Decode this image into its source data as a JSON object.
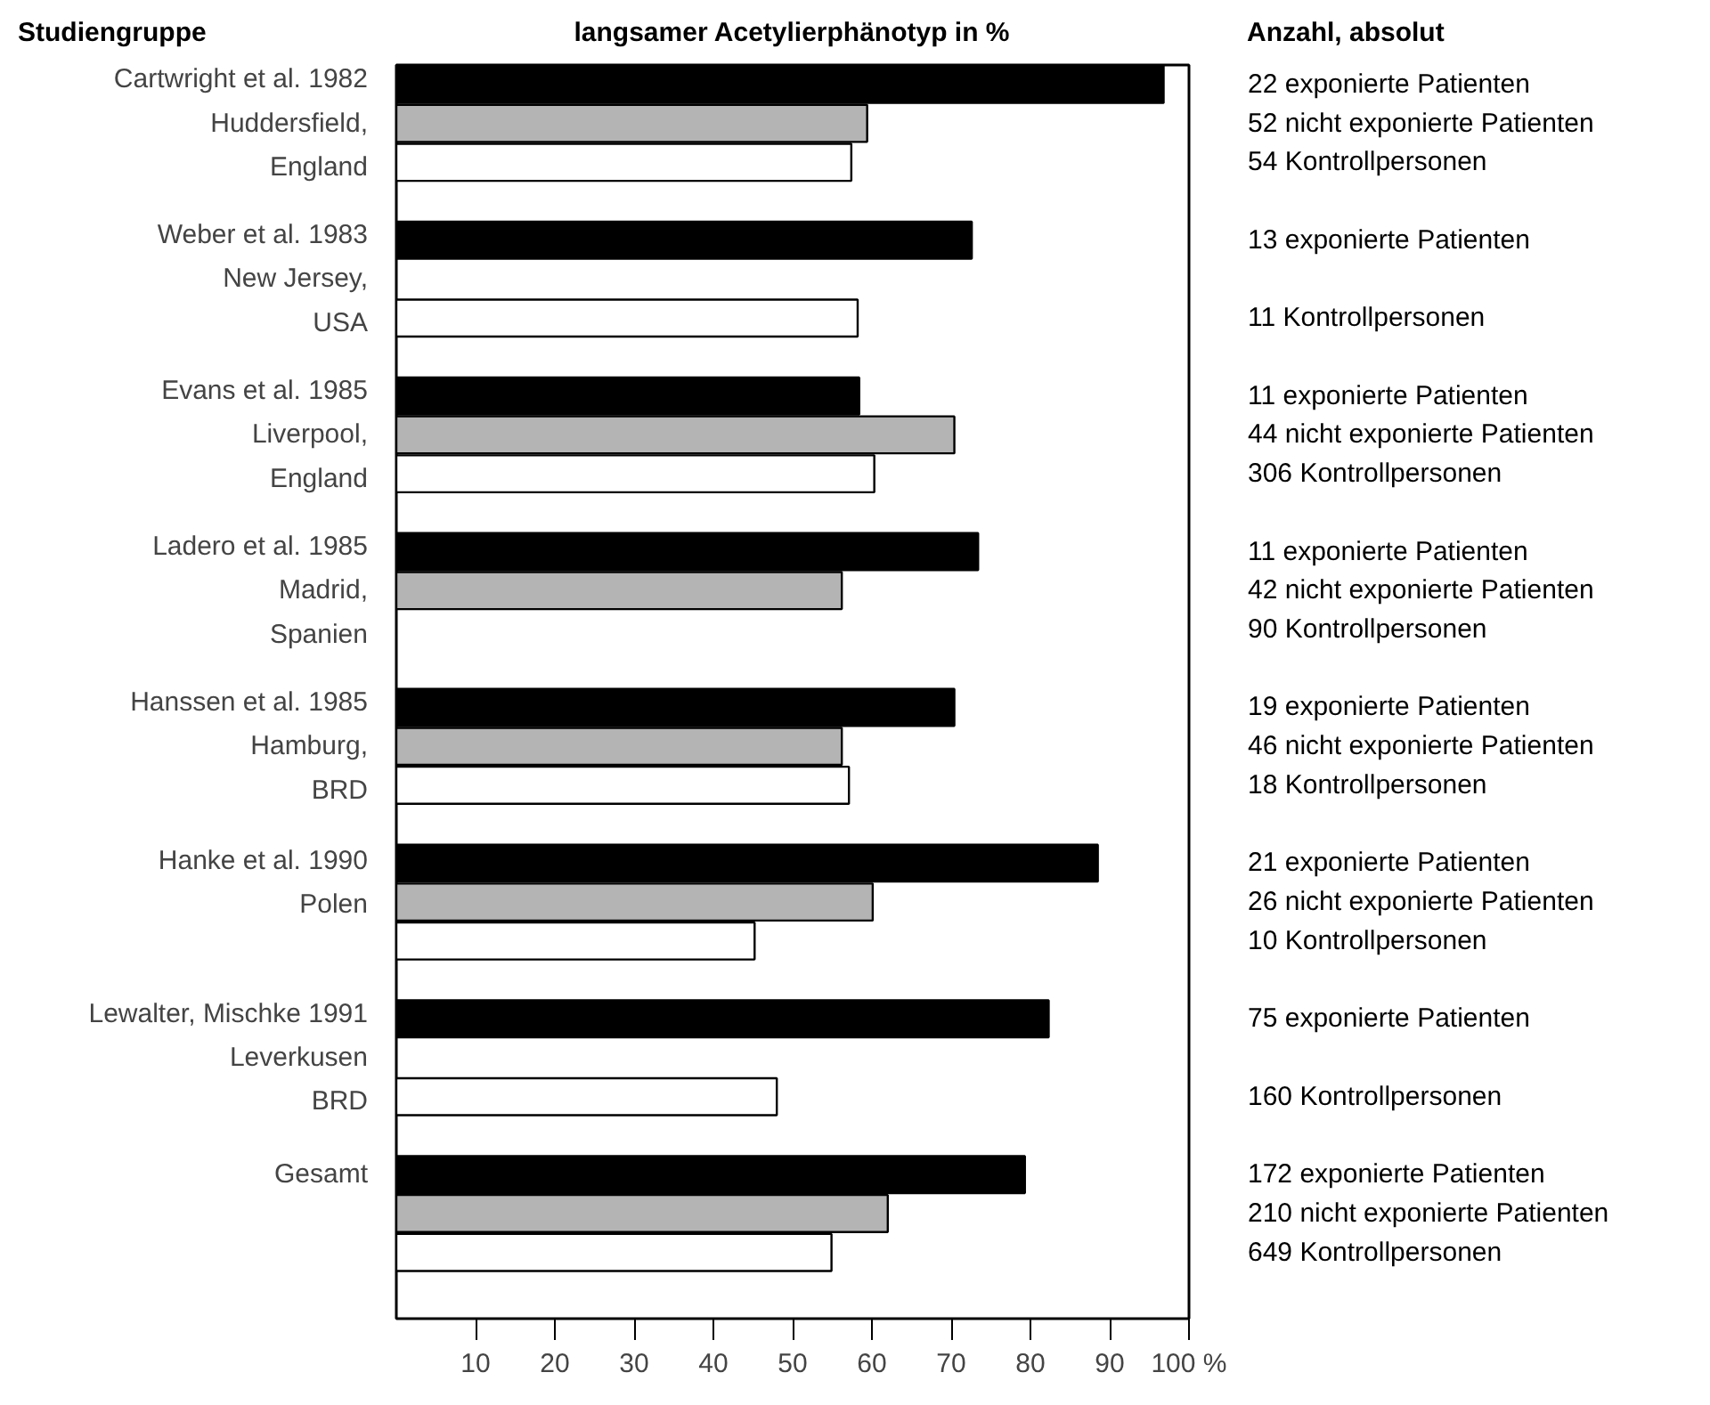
{
  "chart_data": [
    {
      "type": "bar",
      "orientation": "horizontal",
      "title": "langsamer Acetylierphänotyp in %",
      "ylabel": "Studiengruppe",
      "categories": [
        "Cartwright et al. 1982\nHuddersfield,\nEngland",
        "Weber et al. 1983\nNew Jersey,\nUSA",
        "Evans et al. 1985\nLiverpool,\nEngland",
        "Ladero et al. 1985\nMadrid,\nSpanien",
        "Hanssen et al. 1985\nHamburg,\nBRD",
        "Hanke et al. 1990\nPolen",
        "Lewalter, Mischke 1991\nLeverkusen\nBRD",
        "Gesamt"
      ],
      "series": [
        {
          "color": "#000000",
          "values": [
            96.8,
            72.6,
            58.4,
            73.4,
            70.4,
            88.5,
            82.3,
            79.3
          ]
        },
        {
          "color": "#b4b4b4",
          "values": [
            59.4,
            null,
            70.4,
            56.2,
            56.2,
            60.1,
            null,
            62.0
          ]
        },
        {
          "color": "#ffffff",
          "values": [
            57.4,
            58.2,
            60.3,
            null,
            57.1,
            45.2,
            48.0,
            54.9
          ]
        }
      ],
      "xlim": [
        0,
        100
      ],
      "xticks": [
        10,
        20,
        30,
        40,
        50,
        60,
        70,
        80,
        90,
        {
          "value": 100,
          "label": "100 %"
        }
      ]
    },
    {
      "type": "other",
      "title": "Anzahl, absolut",
      "categories": [
        "22 exponierte Patienten",
        "52 nicht exponierte Patienten",
        "54 Kontrollpersonen",
        null,
        "13 exponierte Patienten",
        null,
        "11 Kontrollpersonen",
        null,
        "11 exponierte Patienten",
        "44 nicht exponierte Patienten",
        "306 Kontrollpersonen",
        null,
        "11 exponierte Patienten",
        "42 nicht exponierte Patienten",
        "90 Kontrollpersonen",
        null,
        "19 exponierte Patienten",
        "46 nicht exponierte Patienten",
        "18 Kontrollpersonen",
        null,
        "21 exponierte Patienten",
        "26 nicht exponierte Patienten",
        "10 Kontrollpersonen",
        null,
        "75 exponierte Patienten",
        null,
        "160 Kontrollpersonen",
        null,
        "172 exponierte Patienten",
        "210 nicht exponierte Patienten",
        "649 Kontrollpersonen"
      ]
    }
  ]
}
